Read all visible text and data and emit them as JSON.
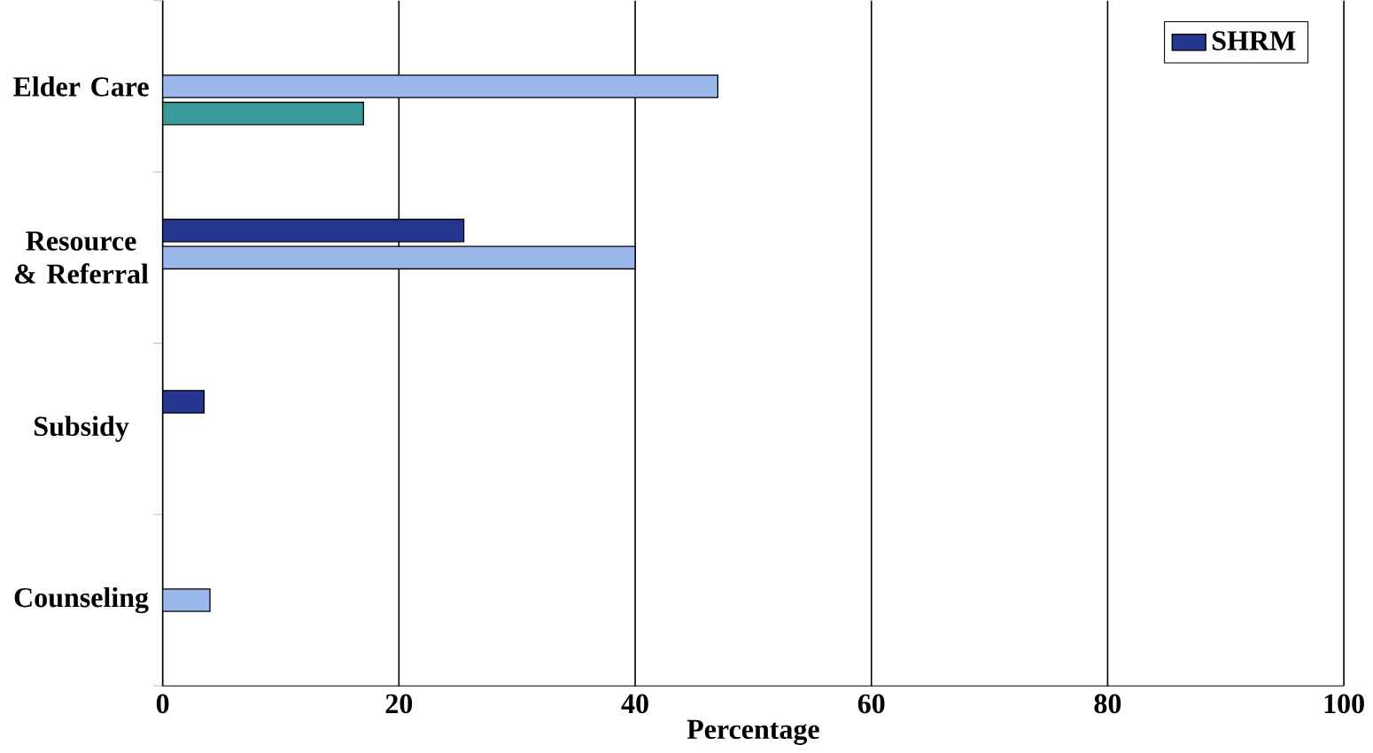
{
  "chart_data": {
    "type": "bar",
    "orientation": "horizontal",
    "categories": [
      "Elder Care",
      "Resource & Referral",
      "Subsidy",
      "Counseling"
    ],
    "series": [
      {
        "color": "#3a9a9a",
        "values": [
          17,
          null,
          null,
          null
        ]
      },
      {
        "color": "#9ab8ec",
        "values": [
          47,
          40,
          null,
          4
        ]
      },
      {
        "name": "SHRM",
        "color": "#27368f",
        "values": [
          null,
          25.5,
          3.5,
          null
        ]
      }
    ],
    "xlabel": "Percentage",
    "xlim": [
      0,
      100
    ],
    "xticks": [
      0,
      20,
      40,
      60,
      80,
      100
    ],
    "grid": "x",
    "legend": "top right"
  }
}
